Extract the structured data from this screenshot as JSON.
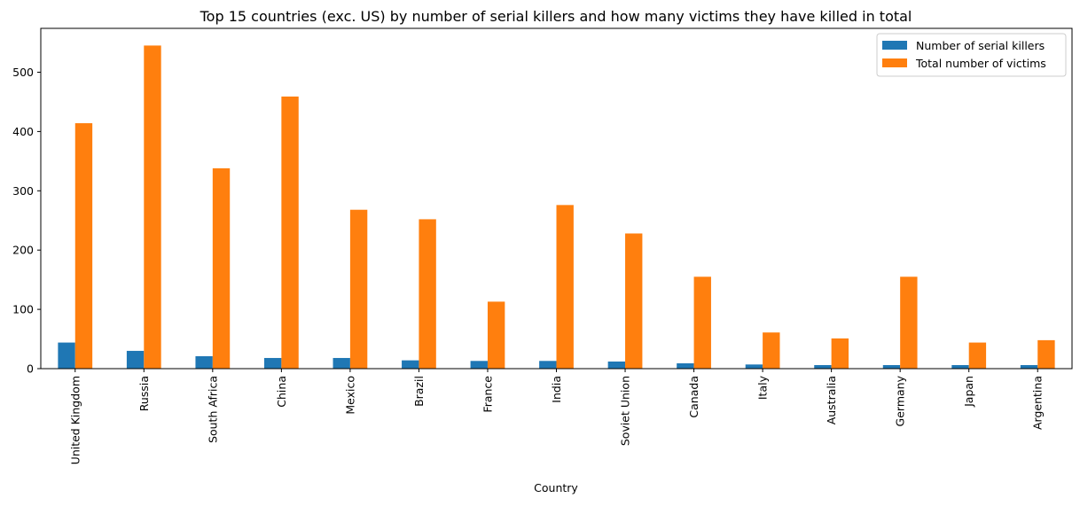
{
  "chart_data": {
    "type": "bar",
    "title": "Top 15 countries (exc. US) by number of serial killers and how many victims they have killed in total",
    "xlabel": "Country",
    "ylabel": "",
    "categories": [
      "United Kingdom",
      "Russia",
      "South Africa",
      "China",
      "Mexico",
      "Brazil",
      "France",
      "India",
      "Soviet Union",
      "Canada",
      "Italy",
      "Australia",
      "Germany",
      "Japan",
      "Argentina"
    ],
    "series": [
      {
        "name": "Number of serial killers",
        "color": "#1f77b4",
        "values": [
          44,
          30,
          21,
          18,
          18,
          14,
          13,
          13,
          12,
          9,
          7,
          6,
          6,
          6,
          6
        ]
      },
      {
        "name": "Total number of victims",
        "color": "#ff7f0e",
        "values": [
          414,
          545,
          338,
          459,
          268,
          252,
          113,
          276,
          228,
          155,
          61,
          51,
          155,
          44,
          48
        ]
      }
    ],
    "ylim": [
      0,
      574
    ],
    "yticks": [
      0,
      100,
      200,
      300,
      400,
      500
    ],
    "grid": false,
    "legend_position": "top-right"
  }
}
